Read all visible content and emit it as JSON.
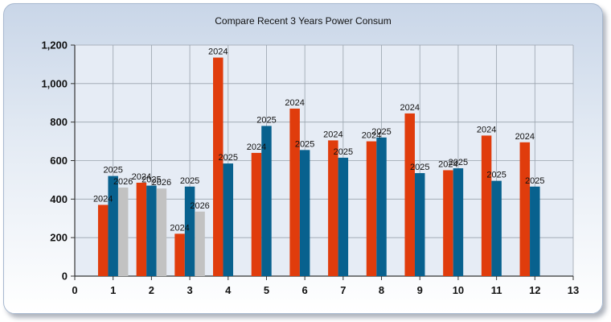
{
  "chart_data": {
    "type": "bar",
    "title": "Compare Recent 3 Years Power Consum",
    "xlabel": "",
    "ylabel": "",
    "xlim": [
      0,
      13
    ],
    "ylim": [
      0,
      1200
    ],
    "x_ticks": [
      "0",
      "1",
      "2",
      "3",
      "4",
      "5",
      "6",
      "7",
      "8",
      "9",
      "10",
      "11",
      "12",
      "13"
    ],
    "y_ticks": [
      "0",
      "200",
      "400",
      "600",
      "800",
      "1,000",
      "1,200"
    ],
    "categories": [
      1,
      2,
      3,
      4,
      5,
      6,
      7,
      8,
      9,
      10,
      11,
      12
    ],
    "grid": true,
    "legend": "none",
    "series": [
      {
        "name": "2024",
        "color": "#e03c0c",
        "values": [
          370,
          485,
          220,
          1135,
          640,
          870,
          705,
          700,
          845,
          550,
          730,
          695
        ]
      },
      {
        "name": "2025",
        "color": "#08618e",
        "values": [
          520,
          470,
          465,
          585,
          780,
          655,
          615,
          720,
          535,
          560,
          495,
          465
        ]
      },
      {
        "name": "2026",
        "color": "#c2c2c2",
        "values": [
          460,
          455,
          335,
          null,
          null,
          null,
          null,
          null,
          null,
          null,
          null,
          null
        ]
      }
    ]
  }
}
